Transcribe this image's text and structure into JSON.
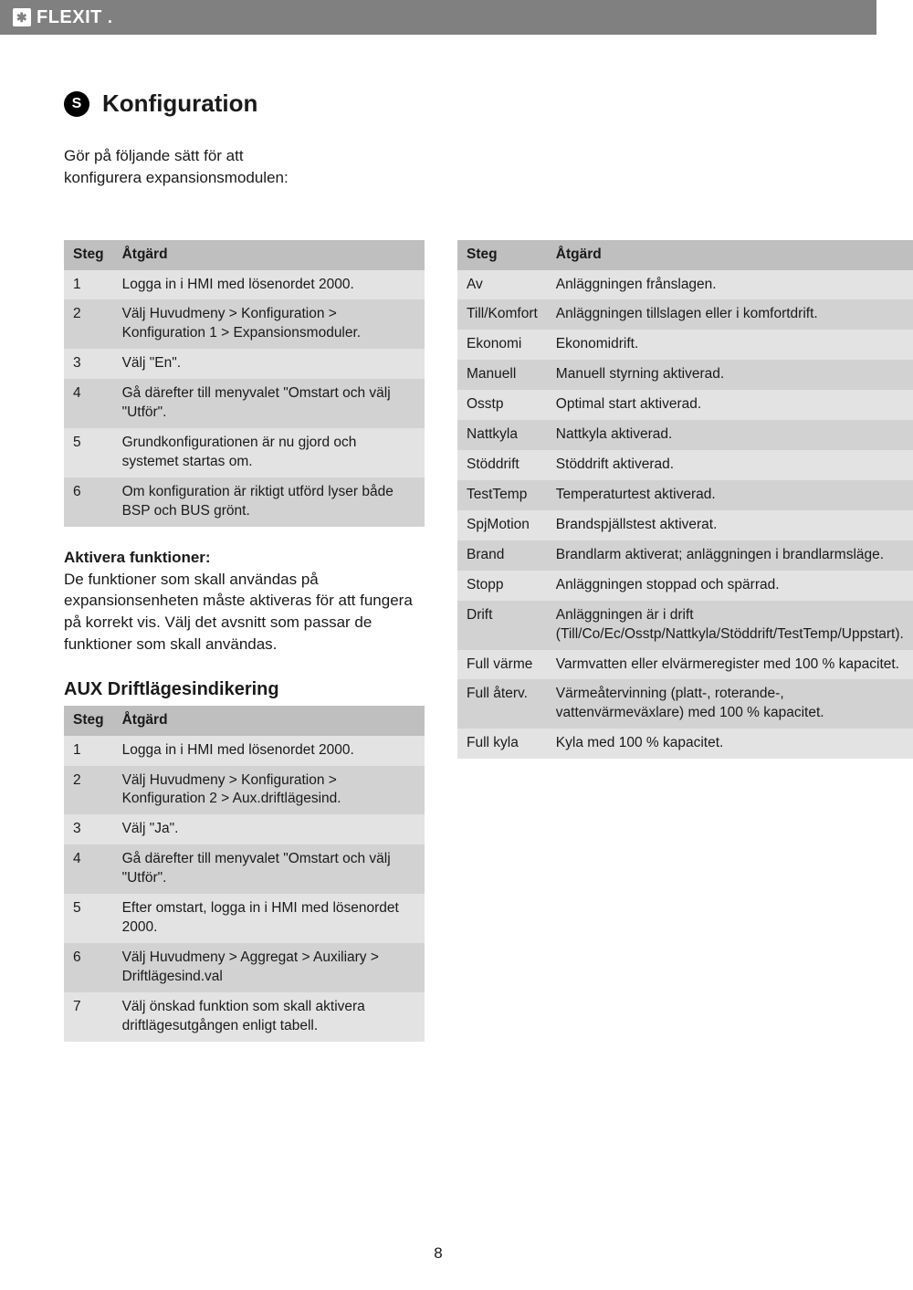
{
  "brand": "FLEXIT",
  "section_badge": "S",
  "section_title": "Konfiguration",
  "intro_line1": "Gör på följande sätt för att",
  "intro_line2": "konfigurera expansionsmodulen:",
  "table1": {
    "col_step": "Steg",
    "col_action": "Åtgärd",
    "rows": [
      {
        "s": "1",
        "a": "Logga in i HMI med lösenordet 2000."
      },
      {
        "s": "2",
        "a": "Välj Huvudmeny > Konfiguration > Konfiguration 1 > Expansionsmoduler."
      },
      {
        "s": "3",
        "a": "Välj \"En\"."
      },
      {
        "s": "4",
        "a": "Gå därefter till menyvalet \"Omstart och välj \"Utför\"."
      },
      {
        "s": "5",
        "a": "Grundkonfigurationen är nu gjord och systemet startas om."
      },
      {
        "s": "6",
        "a": "Om konfiguration är riktigt utförd lyser både BSP och BUS grönt."
      }
    ]
  },
  "activate_label": "Aktivera funktioner:",
  "activate_text": "De funktioner som skall användas på expansionsenheten måste aktiveras för att fungera på korrekt vis. Välj det avsnitt som passar de funktioner som skall användas.",
  "aux_heading": "AUX Driftlägesindikering",
  "table2": {
    "col_step": "Steg",
    "col_action": "Åtgärd",
    "rows": [
      {
        "s": "1",
        "a": "Logga in i HMI med lösenordet 2000."
      },
      {
        "s": "2",
        "a": "Välj Huvudmeny > Konfiguration > Konfiguration 2 > Aux.driftlägesind."
      },
      {
        "s": "3",
        "a": "Välj \"Ja\"."
      },
      {
        "s": "4",
        "a": "Gå därefter till menyvalet \"Omstart och välj \"Utför\"."
      },
      {
        "s": "5",
        "a": "Efter omstart, logga in i HMI med lösenordet 2000."
      },
      {
        "s": "6",
        "a": "Välj Huvudmeny > Aggregat > Auxiliary > Driftlägesind.val"
      },
      {
        "s": "7",
        "a": "Välj önskad funktion som skall aktivera driftlägesutgången enligt tabell."
      }
    ]
  },
  "table3": {
    "col_key": "Steg",
    "col_val": "Åtgärd",
    "rows": [
      {
        "k": "Av",
        "v": "Anläggningen frånslagen."
      },
      {
        "k": "Till/Komfort",
        "v": "Anläggningen tillslagen eller i komfortdrift."
      },
      {
        "k": "Ekonomi",
        "v": "Ekonomidrift."
      },
      {
        "k": "Manuell",
        "v": "Manuell styrning aktiverad."
      },
      {
        "k": "Osstp",
        "v": "Optimal start aktiverad."
      },
      {
        "k": "Nattkyla",
        "v": "Nattkyla aktiverad."
      },
      {
        "k": "Stöddrift",
        "v": "Stöddrift aktiverad."
      },
      {
        "k": "TestTemp",
        "v": "Temperaturtest aktiverad."
      },
      {
        "k": "SpjMotion",
        "v": "Brandspjällstest aktiverat."
      },
      {
        "k": "Brand",
        "v": "Brandlarm aktiverat; anläggningen i brandlarmsläge."
      },
      {
        "k": "Stopp",
        "v": "Anläggningen stoppad och spärrad."
      },
      {
        "k": "Drift",
        "v": "Anläggningen är i drift (Till/Co/Ec/Osstp/Nattkyla/Stöddrift/TestTemp/Uppstart)."
      },
      {
        "k": "Full värme",
        "v": "Varmvatten eller elvärmeregister med 100 % kapacitet."
      },
      {
        "k": "Full återv.",
        "v": "Värmeåtervinning (platt-, roterande-, vattenvärmeväxlare) med 100 % kapacitet."
      },
      {
        "k": "Full kyla",
        "v": "Kyla med 100 % kapacitet."
      }
    ]
  },
  "page_number": "8"
}
